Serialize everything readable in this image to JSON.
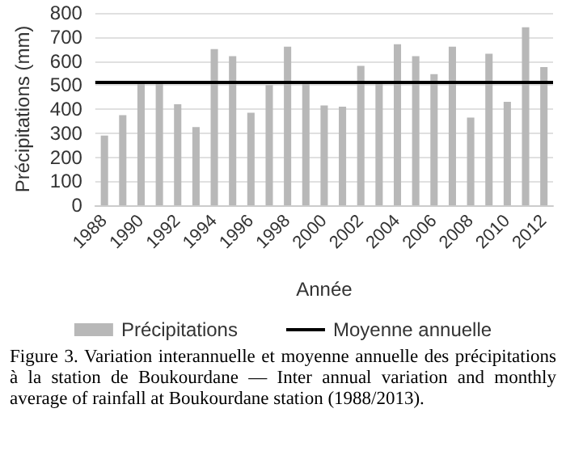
{
  "chart_data": {
    "type": "bar",
    "xlabel": "Année",
    "ylabel": "Précipitations (mm)",
    "categories": [
      "1988",
      null,
      "1990",
      null,
      "1992",
      null,
      "1994",
      null,
      "1996",
      null,
      "1998",
      null,
      "2000",
      null,
      "2002",
      null,
      "2004",
      null,
      "2006",
      null,
      "2008",
      null,
      "2010",
      null,
      "2012"
    ],
    "series": [
      {
        "name": "Précipitations",
        "color": "#b8b8b8",
        "values": [
          290,
          375,
          515,
          515,
          420,
          325,
          650,
          620,
          385,
          500,
          660,
          515,
          415,
          410,
          580,
          515,
          670,
          620,
          545,
          660,
          365,
          630,
          430,
          740,
          575
        ]
      }
    ],
    "ref_lines": [
      {
        "axis": "y",
        "value": 515,
        "label": "Moyenne annuelle",
        "color": "#000000"
      }
    ],
    "ylim": [
      0,
      800
    ],
    "yticks": [
      0,
      100,
      200,
      300,
      400,
      500,
      600,
      700,
      800
    ],
    "grid": "y",
    "legend": "bottom",
    "annotations": [
      "Figure 3. Variation interannuelle et moyenne annuelle des précipitations à la station de Boukourdane — Inter annual variation and monthly average of rainfall at Boukourdane station (1988/2013)."
    ]
  }
}
